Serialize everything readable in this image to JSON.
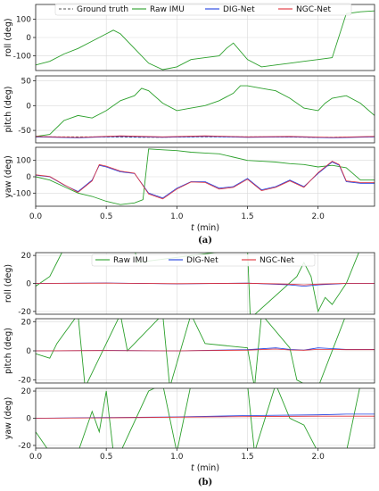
{
  "colors": {
    "ground_truth": "#555555",
    "raw_imu": "#2ca02c",
    "dig_net": "#1f3fe0",
    "ngc_net": "#e0303a",
    "grid": "#d9d9d9",
    "frame": "#222222"
  },
  "chart_data": [
    {
      "type": "line",
      "panel": "a",
      "caption": "(a)",
      "x_axis_label": "t (min)",
      "x_ticks": [
        "0.0",
        "0.5",
        "1.0",
        "1.5",
        "2.0"
      ],
      "xlim": [
        0.0,
        2.4
      ],
      "legend": [
        "Ground truth",
        "Raw IMU",
        "DIG-Net",
        "NGC-Net"
      ],
      "legend_placement": "top",
      "grid": true,
      "subplots": [
        {
          "ylabel": "roll (deg)",
          "ylim": [
            -180,
            180
          ],
          "y_ticks": [
            "100",
            "0",
            "-100"
          ],
          "y_tick_values": [
            100,
            0,
            -100
          ],
          "series": [
            {
              "name": "Raw IMU",
              "x": [
                0.0,
                0.1,
                0.2,
                0.3,
                0.4,
                0.5,
                0.55,
                0.6,
                0.7,
                0.8,
                0.9,
                1.0,
                1.1,
                1.2,
                1.3,
                1.35,
                1.4,
                1.5,
                1.6,
                1.7,
                1.8,
                1.9,
                2.0,
                2.1,
                2.2,
                2.3,
                2.4
              ],
              "y": [
                -150,
                -130,
                -90,
                -60,
                -20,
                20,
                40,
                20,
                -60,
                -140,
                -175,
                -160,
                -120,
                -110,
                -100,
                -60,
                -30,
                -120,
                -160,
                -150,
                -140,
                -130,
                -120,
                -110,
                130,
                140,
                145
              ]
            }
          ]
        },
        {
          "ylabel": "pitch (deg)",
          "ylim": [
            -75,
            60
          ],
          "y_ticks": [
            "50",
            "0",
            "-50"
          ],
          "y_tick_values": [
            50,
            0,
            -50
          ],
          "series": [
            {
              "name": "Ground truth",
              "x": [
                0.0,
                0.4,
                0.8,
                1.2,
                1.6,
                2.0,
                2.4
              ],
              "y": [
                -63,
                -63,
                -64,
                -63,
                -63,
                -64,
                -63
              ]
            },
            {
              "name": "Raw IMU",
              "x": [
                0.0,
                0.1,
                0.2,
                0.3,
                0.4,
                0.5,
                0.6,
                0.7,
                0.75,
                0.8,
                0.9,
                1.0,
                1.1,
                1.2,
                1.3,
                1.4,
                1.45,
                1.5,
                1.6,
                1.7,
                1.8,
                1.9,
                2.0,
                2.05,
                2.1,
                2.2,
                2.3,
                2.4
              ],
              "y": [
                -62,
                -58,
                -30,
                -20,
                -25,
                -10,
                10,
                20,
                35,
                30,
                5,
                -10,
                -5,
                0,
                10,
                25,
                40,
                40,
                35,
                30,
                15,
                -5,
                -10,
                5,
                15,
                20,
                5,
                -20
              ]
            },
            {
              "name": "DIG-Net",
              "x": [
                0.0,
                0.3,
                0.6,
                0.9,
                1.2,
                1.5,
                1.8,
                2.1,
                2.4
              ],
              "y": [
                -63,
                -65,
                -62,
                -64,
                -62,
                -64,
                -63,
                -65,
                -63
              ]
            },
            {
              "name": "NGC-Net",
              "x": [
                0.0,
                0.3,
                0.6,
                0.9,
                1.2,
                1.5,
                1.8,
                2.1,
                2.4
              ],
              "y": [
                -62,
                -64,
                -61,
                -63,
                -61,
                -63,
                -62,
                -64,
                -62
              ]
            }
          ]
        },
        {
          "ylabel": "yaw (deg)",
          "ylim": [
            -180,
            180
          ],
          "y_ticks": [
            "100",
            "0",
            "-100"
          ],
          "y_tick_values": [
            100,
            0,
            -100
          ],
          "series": [
            {
              "name": "Raw IMU",
              "x": [
                0.0,
                0.1,
                0.2,
                0.3,
                0.4,
                0.5,
                0.6,
                0.7,
                0.76,
                0.8,
                0.9,
                1.0,
                1.1,
                1.2,
                1.3,
                1.4,
                1.5,
                1.6,
                1.7,
                1.8,
                1.9,
                2.0,
                2.1,
                2.2,
                2.3,
                2.4
              ],
              "y": [
                0,
                -20,
                -60,
                -100,
                -120,
                -150,
                -170,
                -160,
                -140,
                170,
                165,
                160,
                150,
                145,
                140,
                120,
                100,
                95,
                90,
                80,
                75,
                60,
                70,
                55,
                -20,
                -20
              ]
            },
            {
              "name": "DIG-Net",
              "x": [
                0.0,
                0.1,
                0.2,
                0.3,
                0.4,
                0.45,
                0.5,
                0.6,
                0.7,
                0.8,
                0.9,
                1.0,
                1.1,
                1.2,
                1.3,
                1.4,
                1.5,
                1.6,
                1.7,
                1.8,
                1.9,
                2.0,
                2.1,
                2.15,
                2.2,
                2.3,
                2.4
              ],
              "y": [
                10,
                0,
                -50,
                -90,
                -20,
                70,
                60,
                30,
                20,
                -100,
                -130,
                -70,
                -30,
                -30,
                -70,
                -60,
                -10,
                -80,
                -60,
                -20,
                -60,
                20,
                90,
                70,
                -30,
                -40,
                -40
              ]
            },
            {
              "name": "NGC-Net",
              "x": [
                0.0,
                0.1,
                0.2,
                0.3,
                0.4,
                0.45,
                0.5,
                0.6,
                0.7,
                0.8,
                0.9,
                1.0,
                1.1,
                1.2,
                1.3,
                1.4,
                1.5,
                1.6,
                1.7,
                1.8,
                1.9,
                2.0,
                2.1,
                2.15,
                2.2,
                2.3,
                2.4
              ],
              "y": [
                12,
                2,
                -48,
                -95,
                -25,
                75,
                65,
                35,
                22,
                -105,
                -135,
                -75,
                -32,
                -35,
                -75,
                -65,
                -15,
                -85,
                -65,
                -25,
                -65,
                25,
                95,
                75,
                -25,
                -35,
                -35
              ]
            }
          ]
        }
      ]
    },
    {
      "type": "line",
      "panel": "b",
      "caption": "(b)",
      "x_axis_label": "t (min)",
      "x_ticks": [
        "0.0",
        "0.5",
        "1.0",
        "1.5",
        "2.0"
      ],
      "xlim": [
        0.0,
        2.4
      ],
      "legend": [
        "Raw IMU",
        "DIG-Net",
        "NGC-Net"
      ],
      "legend_placement": "top",
      "grid": true,
      "subplots": [
        {
          "ylabel": "roll (deg)",
          "ylim": [
            -22,
            22
          ],
          "y_ticks": [
            "20",
            "0",
            "-20"
          ],
          "y_tick_values": [
            20,
            0,
            -20
          ],
          "series": [
            {
              "name": "Raw IMU",
              "x": [
                0.0,
                0.1,
                0.15,
                0.2,
                0.4,
                0.7,
                0.72,
                1.5,
                1.52,
                1.85,
                1.9,
                1.95,
                2.0,
                2.05,
                2.1,
                2.2,
                2.3,
                2.4
              ],
              "y": [
                -2,
                5,
                15,
                25,
                25,
                25,
                15,
                25,
                -25,
                5,
                15,
                5,
                -20,
                -10,
                -15,
                0,
                25,
                25
              ]
            },
            {
              "name": "DIG-Net",
              "x": [
                0.0,
                0.5,
                1.0,
                1.5,
                1.8,
                1.9,
                2.0,
                2.2,
                2.4
              ],
              "y": [
                0,
                0.3,
                -0.3,
                0.2,
                -1,
                -2,
                -1,
                0,
                0
              ]
            },
            {
              "name": "NGC-Net",
              "x": [
                0.0,
                0.5,
                1.0,
                1.5,
                1.8,
                1.9,
                2.0,
                2.2,
                2.4
              ],
              "y": [
                0,
                0.2,
                -0.2,
                0.1,
                -0.5,
                -1,
                -0.5,
                0,
                0
              ]
            }
          ]
        },
        {
          "ylabel": "pitch (deg)",
          "ylim": [
            -22,
            22
          ],
          "y_ticks": [
            "20",
            "0",
            "-20"
          ],
          "y_tick_values": [
            20,
            0,
            -20
          ],
          "series": [
            {
              "name": "Raw IMU",
              "x": [
                0.0,
                0.1,
                0.15,
                0.3,
                0.35,
                0.6,
                0.65,
                0.9,
                0.95,
                1.1,
                1.2,
                1.5,
                1.55,
                1.6,
                1.8,
                1.85,
                1.95,
                2.0,
                2.2,
                2.3,
                2.4
              ],
              "y": [
                -2,
                -5,
                5,
                25,
                -25,
                25,
                0,
                25,
                -25,
                25,
                5,
                2,
                -25,
                25,
                2,
                -20,
                -25,
                -25,
                25,
                25,
                25
              ]
            },
            {
              "name": "DIG-Net",
              "x": [
                0.0,
                0.5,
                1.0,
                1.5,
                1.7,
                1.8,
                1.9,
                2.0,
                2.1,
                2.2,
                2.4
              ],
              "y": [
                0,
                0.3,
                0,
                0.8,
                2,
                1,
                0.5,
                2,
                1.5,
                1,
                1
              ]
            },
            {
              "name": "NGC-Net",
              "x": [
                0.0,
                0.5,
                1.0,
                1.5,
                1.7,
                1.8,
                1.9,
                2.0,
                2.1,
                2.2,
                2.4
              ],
              "y": [
                0,
                0.2,
                0,
                0.5,
                1.2,
                0.6,
                0.4,
                1,
                1,
                0.8,
                0.8
              ]
            }
          ]
        },
        {
          "ylabel": "yaw (deg)",
          "ylim": [
            -22,
            22
          ],
          "y_ticks": [
            "20",
            "0",
            "-20"
          ],
          "y_tick_values": [
            20,
            0,
            -20
          ],
          "series": [
            {
              "name": "Raw IMU",
              "x": [
                0.0,
                0.1,
                0.2,
                0.3,
                0.4,
                0.45,
                0.5,
                0.55,
                0.6,
                0.8,
                0.9,
                1.0,
                1.1,
                1.3,
                1.5,
                1.55,
                1.7,
                1.8,
                1.9,
                2.0,
                2.2,
                2.3,
                2.4
              ],
              "y": [
                -10,
                -25,
                -25,
                -25,
                5,
                -10,
                20,
                -25,
                -25,
                20,
                25,
                -25,
                25,
                25,
                25,
                -25,
                25,
                0,
                -5,
                -25,
                -25,
                25,
                25
              ]
            },
            {
              "name": "DIG-Net",
              "x": [
                0.0,
                0.5,
                1.0,
                1.5,
                2.0,
                2.2,
                2.4
              ],
              "y": [
                0,
                0.5,
                1,
                2,
                2.5,
                3,
                3
              ]
            },
            {
              "name": "NGC-Net",
              "x": [
                0.0,
                0.5,
                1.0,
                1.5,
                2.0,
                2.2,
                2.4
              ],
              "y": [
                0,
                0.3,
                0.8,
                1.2,
                1.5,
                1.5,
                1.5
              ]
            }
          ]
        }
      ]
    }
  ]
}
